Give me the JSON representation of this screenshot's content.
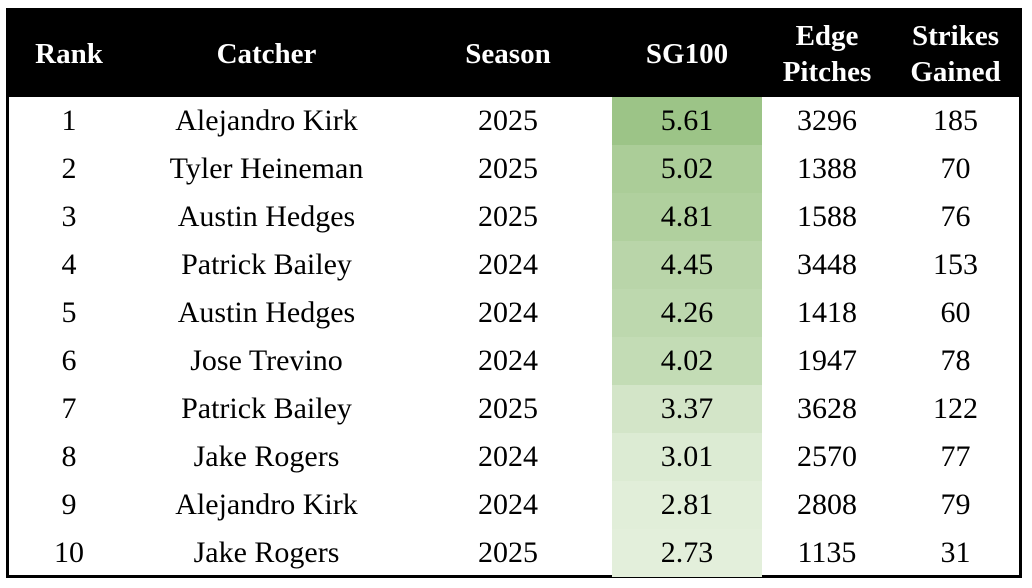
{
  "chart_data": {
    "type": "table",
    "columns": [
      "Rank",
      "Catcher",
      "Season",
      "SG100",
      "Edge Pitches",
      "Strikes Gained"
    ],
    "header_lines": [
      [
        "Rank"
      ],
      [
        "Catcher"
      ],
      [
        "Season"
      ],
      [
        "SG100"
      ],
      [
        "Edge",
        "Pitches"
      ],
      [
        "Strikes",
        "Gained"
      ]
    ],
    "rows": [
      {
        "rank": "1",
        "catcher": "Alejandro Kirk",
        "season": "2025",
        "sg100": "5.61",
        "edge_pitches": "3296",
        "strikes_gained": "185"
      },
      {
        "rank": "2",
        "catcher": "Tyler Heineman",
        "season": "2025",
        "sg100": "5.02",
        "edge_pitches": "1388",
        "strikes_gained": "70"
      },
      {
        "rank": "3",
        "catcher": "Austin Hedges",
        "season": "2025",
        "sg100": "4.81",
        "edge_pitches": "1588",
        "strikes_gained": "76"
      },
      {
        "rank": "4",
        "catcher": "Patrick Bailey",
        "season": "2024",
        "sg100": "4.45",
        "edge_pitches": "3448",
        "strikes_gained": "153"
      },
      {
        "rank": "5",
        "catcher": "Austin Hedges",
        "season": "2024",
        "sg100": "4.26",
        "edge_pitches": "1418",
        "strikes_gained": "60"
      },
      {
        "rank": "6",
        "catcher": "Jose Trevino",
        "season": "2024",
        "sg100": "4.02",
        "edge_pitches": "1947",
        "strikes_gained": "78"
      },
      {
        "rank": "7",
        "catcher": "Patrick Bailey",
        "season": "2025",
        "sg100": "3.37",
        "edge_pitches": "3628",
        "strikes_gained": "122"
      },
      {
        "rank": "8",
        "catcher": "Jake Rogers",
        "season": "2024",
        "sg100": "3.01",
        "edge_pitches": "2570",
        "strikes_gained": "77"
      },
      {
        "rank": "9",
        "catcher": "Alejandro Kirk",
        "season": "2024",
        "sg100": "2.81",
        "edge_pitches": "2808",
        "strikes_gained": "79"
      },
      {
        "rank": "10",
        "catcher": "Jake Rogers",
        "season": "2025",
        "sg100": "2.73",
        "edge_pitches": "1135",
        "strikes_gained": "31"
      }
    ],
    "heat_column": "sg100",
    "heat_colors": {
      "high": "#9cc487",
      "low": "#e3efdb"
    },
    "header_background": "#000000",
    "header_text_color": "#ffffff"
  }
}
